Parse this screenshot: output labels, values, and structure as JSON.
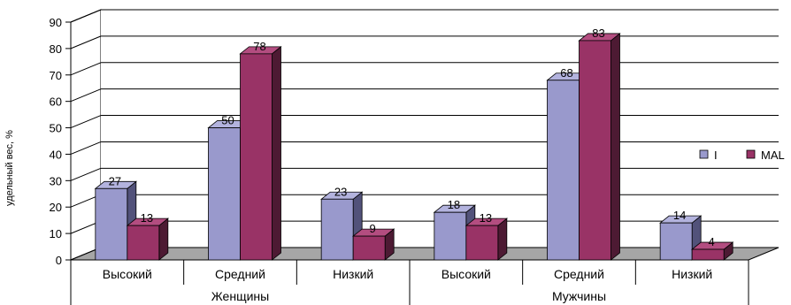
{
  "chart_data": {
    "type": "bar",
    "ylabel": "удельный вес, %",
    "ylim": [
      0,
      90
    ],
    "yticks": [
      0,
      10,
      20,
      30,
      40,
      50,
      60,
      70,
      80,
      90
    ],
    "groups": [
      {
        "label": "Женщины",
        "categories": [
          "Высокий",
          "Средний",
          "Низкий"
        ]
      },
      {
        "label": "Мужчины",
        "categories": [
          "Высокий",
          "Средний",
          "Низкий"
        ]
      }
    ],
    "categories": [
      "Высокий",
      "Средний",
      "Низкий",
      "Высокий",
      "Средний",
      "Низкий"
    ],
    "series": [
      {
        "name": "I",
        "values": [
          27,
          50,
          23,
          18,
          68,
          14
        ],
        "color": "#9999cc",
        "side": "#52527a",
        "top": "#b3b3de"
      },
      {
        "name": "MAL",
        "values": [
          13,
          78,
          9,
          13,
          83,
          4
        ],
        "color": "#993366",
        "side": "#4d1a33",
        "top": "#b34d80"
      }
    ],
    "legend_position": "right",
    "grid": true
  }
}
